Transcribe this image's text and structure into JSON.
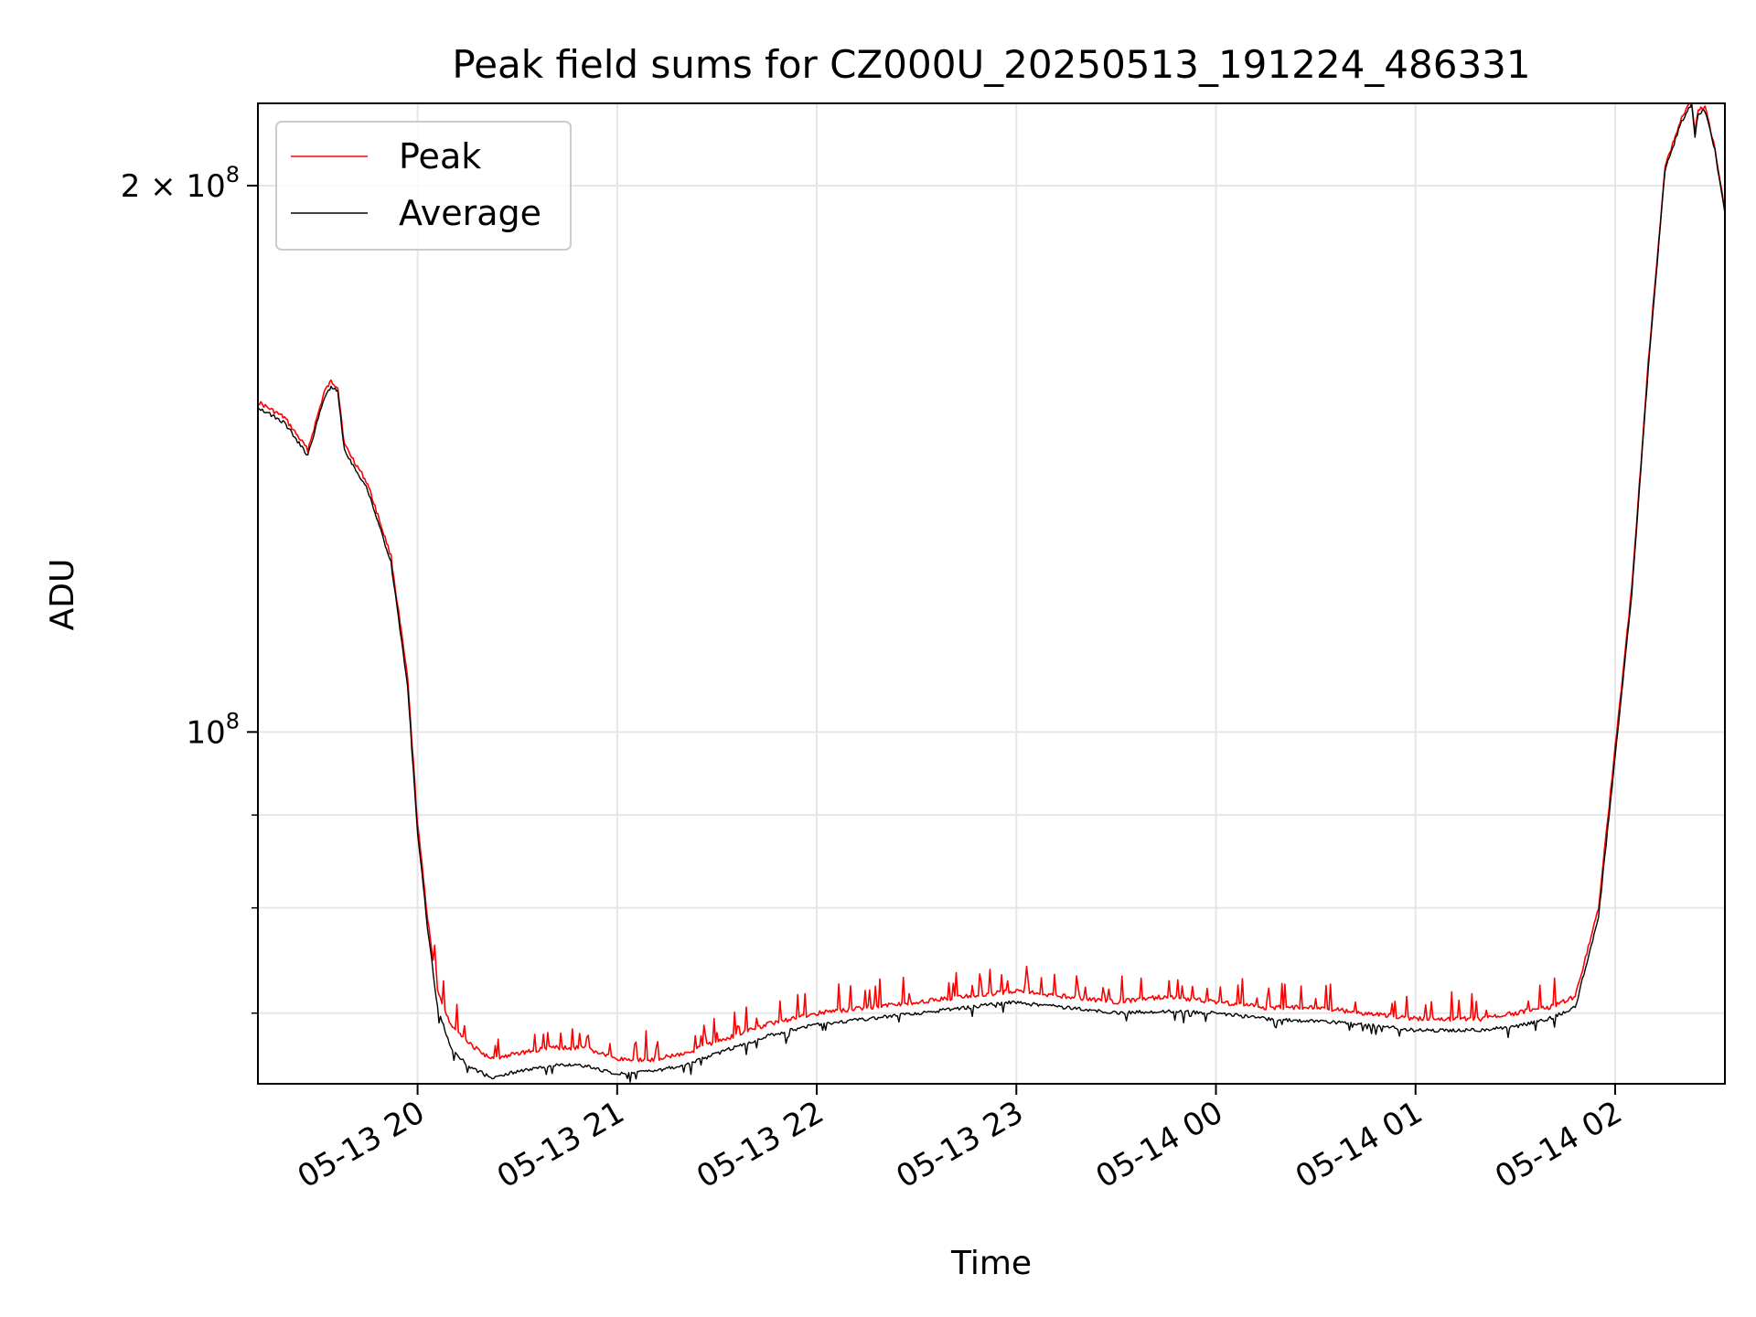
{
  "chart_data": {
    "type": "line",
    "title": "Peak field sums for CZ000U_20250513_191224_486331",
    "xlabel": "Time",
    "ylabel": "ADU",
    "yscale": "log",
    "xlim": [
      "2025-05-13 19:12",
      "2025-05-14 02:33"
    ],
    "ylim": [
      64000000,
      222000000
    ],
    "grid": true,
    "legend": "top-left",
    "x_ticks": [
      {
        "value": "2025-05-13 20:00",
        "label": "05-13 20"
      },
      {
        "value": "2025-05-13 21:00",
        "label": "05-13 21"
      },
      {
        "value": "2025-05-13 22:00",
        "label": "05-13 22"
      },
      {
        "value": "2025-05-13 23:00",
        "label": "05-13 23"
      },
      {
        "value": "2025-05-14 00:00",
        "label": "05-14 00"
      },
      {
        "value": "2025-05-14 01:00",
        "label": "05-14 01"
      },
      {
        "value": "2025-05-14 02:00",
        "label": "05-14 02"
      }
    ],
    "y_ticks": [
      {
        "value": 100000000,
        "base": "10",
        "exp": "8",
        "mult": ""
      },
      {
        "value": 200000000,
        "base": "10",
        "exp": "8",
        "mult": "2 × "
      }
    ],
    "series": [
      {
        "name": "Peak",
        "color": "#ff0000",
        "x": [
          "2025-05-13 19:12",
          "2025-05-13 19:20",
          "2025-05-13 19:27",
          "2025-05-13 19:32",
          "2025-05-13 19:34",
          "2025-05-13 19:36",
          "2025-05-13 19:38",
          "2025-05-13 19:45",
          "2025-05-13 19:52",
          "2025-05-13 19:57",
          "2025-05-13 20:00",
          "2025-05-13 20:03",
          "2025-05-13 20:06",
          "2025-05-13 20:10",
          "2025-05-13 20:15",
          "2025-05-13 20:22",
          "2025-05-13 20:30",
          "2025-05-13 20:40",
          "2025-05-13 20:50",
          "2025-05-13 21:00",
          "2025-05-13 21:10",
          "2025-05-13 21:20",
          "2025-05-13 21:30",
          "2025-05-13 21:45",
          "2025-05-13 22:00",
          "2025-05-13 22:15",
          "2025-05-13 22:30",
          "2025-05-13 22:45",
          "2025-05-13 23:00",
          "2025-05-13 23:15",
          "2025-05-13 23:30",
          "2025-05-13 23:45",
          "2025-05-14 00:00",
          "2025-05-14 00:15",
          "2025-05-14 00:30",
          "2025-05-14 00:45",
          "2025-05-14 01:00",
          "2025-05-14 01:10",
          "2025-05-14 01:20",
          "2025-05-14 01:30",
          "2025-05-14 01:40",
          "2025-05-14 01:48",
          "2025-05-14 01:55",
          "2025-05-14 02:00",
          "2025-05-14 02:05",
          "2025-05-14 02:10",
          "2025-05-14 02:15",
          "2025-05-14 02:20",
          "2025-05-14 02:23",
          "2025-05-14 02:24",
          "2025-05-14 02:25",
          "2025-05-14 02:27",
          "2025-05-14 02:30",
          "2025-05-14 02:33"
        ],
        "y": [
          152000000,
          149000000,
          143000000,
          154000000,
          156000000,
          155000000,
          144000000,
          137000000,
          125000000,
          107000000,
          89000000,
          79000000,
          72000000,
          69000000,
          67500000,
          66000000,
          66500000,
          67000000,
          67000000,
          66000000,
          66000000,
          66500000,
          67500000,
          69000000,
          70000000,
          70500000,
          71000000,
          71500000,
          72000000,
          71500000,
          71000000,
          71500000,
          71000000,
          70500000,
          70500000,
          70000000,
          69500000,
          69500000,
          69500000,
          70000000,
          70500000,
          71500000,
          80000000,
          98000000,
          120000000,
          160000000,
          205000000,
          218000000,
          223000000,
          214000000,
          220000000,
          221000000,
          210000000,
          194000000
        ]
      },
      {
        "name": "Average",
        "color": "#000000",
        "x": [
          "2025-05-13 19:12",
          "2025-05-13 19:20",
          "2025-05-13 19:27",
          "2025-05-13 19:32",
          "2025-05-13 19:34",
          "2025-05-13 19:36",
          "2025-05-13 19:38",
          "2025-05-13 19:45",
          "2025-05-13 19:52",
          "2025-05-13 19:57",
          "2025-05-13 20:00",
          "2025-05-13 20:03",
          "2025-05-13 20:06",
          "2025-05-13 20:10",
          "2025-05-13 20:15",
          "2025-05-13 20:22",
          "2025-05-13 20:30",
          "2025-05-13 20:40",
          "2025-05-13 20:50",
          "2025-05-13 21:00",
          "2025-05-13 21:10",
          "2025-05-13 21:20",
          "2025-05-13 21:30",
          "2025-05-13 21:45",
          "2025-05-13 22:00",
          "2025-05-13 22:15",
          "2025-05-13 22:30",
          "2025-05-13 22:45",
          "2025-05-13 23:00",
          "2025-05-13 23:15",
          "2025-05-13 23:30",
          "2025-05-13 23:45",
          "2025-05-14 00:00",
          "2025-05-14 00:15",
          "2025-05-14 00:30",
          "2025-05-14 00:45",
          "2025-05-14 01:00",
          "2025-05-14 01:10",
          "2025-05-14 01:20",
          "2025-05-14 01:30",
          "2025-05-14 01:40",
          "2025-05-14 01:48",
          "2025-05-14 01:55",
          "2025-05-14 02:00",
          "2025-05-14 02:05",
          "2025-05-14 02:10",
          "2025-05-14 02:15",
          "2025-05-14 02:20",
          "2025-05-14 02:23",
          "2025-05-14 02:24",
          "2025-05-14 02:25",
          "2025-05-14 02:27",
          "2025-05-14 02:30",
          "2025-05-14 02:33"
        ],
        "y": [
          151000000,
          148000000,
          142000000,
          153000000,
          155000000,
          154000000,
          143000000,
          136000000,
          124000000,
          106000000,
          88000000,
          78000000,
          70500000,
          67000000,
          65500000,
          64500000,
          65000000,
          65500000,
          65500000,
          64800000,
          65000000,
          65500000,
          66500000,
          68000000,
          69000000,
          69500000,
          70000000,
          70500000,
          71000000,
          70500000,
          70000000,
          70200000,
          70000000,
          69500000,
          69300000,
          69000000,
          68500000,
          68500000,
          68500000,
          68800000,
          69500000,
          70500000,
          79000000,
          97000000,
          119000000,
          159000000,
          204000000,
          217000000,
          222000000,
          213000000,
          219000000,
          220000000,
          209000000,
          193000000
        ]
      }
    ]
  }
}
